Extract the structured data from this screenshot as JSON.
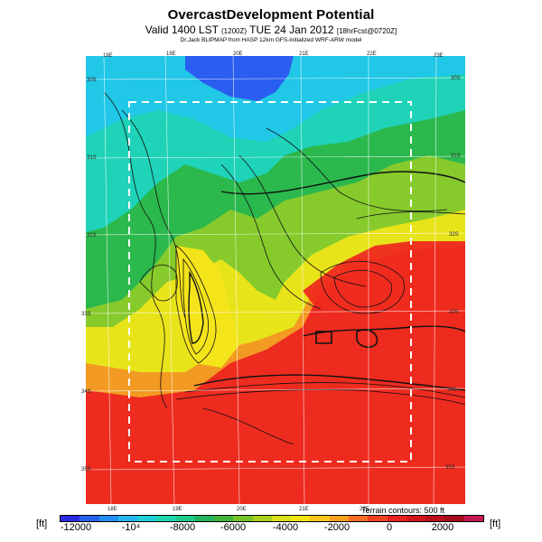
{
  "header": {
    "title": "OvercastDevelopment Potential",
    "valid_main": "Valid 1400 LST ",
    "valid_small": "(1200Z)",
    "valid_date": " TUE 24 Jan 2012 ",
    "valid_small2": "[18hrFcst@0720Z]",
    "subtitle": "Dr.Jack BLIPMAP from HASP 12km GFS-initialized WRF-ARW model"
  },
  "map": {
    "lon_labels_top": [
      "18E",
      "19E",
      "20E",
      "21E",
      "22E",
      "23E"
    ],
    "lon_labels_bottom": [
      "18E",
      "19E",
      "20E",
      "21E",
      "22E"
    ],
    "lat_labels_left": [
      "30S",
      "31S",
      "32S",
      "33S",
      "34S",
      "35S"
    ],
    "lat_labels_right": [
      "30S",
      "31S",
      "32S",
      "33S",
      "34S",
      "35S"
    ],
    "terrain_note": "Terrain contours: 500 ft"
  },
  "colorbar": {
    "unit_left": "[ft]",
    "unit_right": "[ft]",
    "labels": [
      "-12000",
      "-10⁴",
      "-8000",
      "-6000",
      "-4000",
      "-2000",
      "0",
      "2000"
    ],
    "colors": [
      "#2a2ae0",
      "#2463ee",
      "#1f8ff4",
      "#23b6f0",
      "#20d0d8",
      "#1fd7b0",
      "#1ec98a",
      "#22b45a",
      "#3fb53a",
      "#76c427",
      "#a9d31d",
      "#d8e11a",
      "#f2e714",
      "#f7c81a",
      "#f89f20",
      "#f66f22",
      "#f1431f",
      "#e8221f",
      "#d4141c",
      "#bb0f1b",
      "#a80c1a",
      "#c41a52"
    ]
  },
  "fields": {
    "regions": [
      {
        "name": "deep-blue",
        "color": "#2a5ef0"
      },
      {
        "name": "cyan",
        "color": "#21c7e6"
      },
      {
        "name": "teal",
        "color": "#1fd3b8"
      },
      {
        "name": "green",
        "color": "#27bd4a"
      },
      {
        "name": "light-green",
        "color": "#7cc830"
      },
      {
        "name": "yellow",
        "color": "#e8e41a"
      },
      {
        "name": "orange",
        "color": "#f4a020"
      },
      {
        "name": "red-orange",
        "color": "#f06a24"
      },
      {
        "name": "red",
        "color": "#ee2b1f"
      }
    ]
  }
}
